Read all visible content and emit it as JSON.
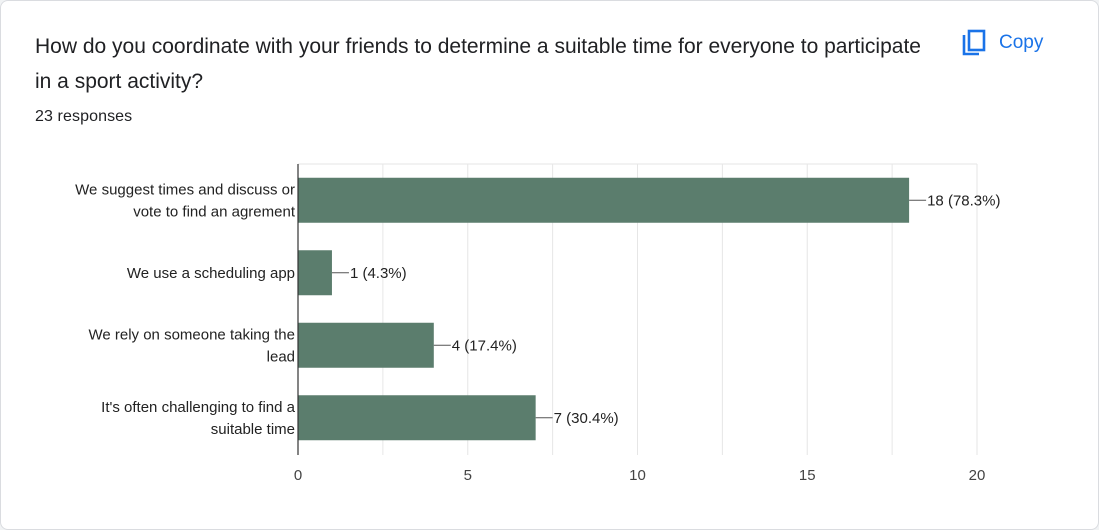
{
  "question": "How do you coordinate with your friends to determine a suitable time for everyone to participate in a sport activity?",
  "responses_label": "23 responses",
  "copy_button": {
    "label": "Copy",
    "icon": "copy-icon"
  },
  "colors": {
    "bar": "#5b7d6d",
    "accent": "#1a73e8",
    "grid": "#e6e6e6",
    "axis": "#333333"
  },
  "chart_data": {
    "type": "bar",
    "orientation": "horizontal",
    "categories": [
      [
        "We suggest times and discuss or",
        "vote to find an agrement"
      ],
      [
        "We use a scheduling app"
      ],
      [
        "We rely on someone taking the",
        "lead"
      ],
      [
        "It's often challenging to find a",
        "suitable time"
      ]
    ],
    "values": [
      18,
      1,
      4,
      7
    ],
    "value_labels": [
      "18 (78.3%)",
      "1 (4.3%)",
      "4 (17.4%)",
      "7 (30.4%)"
    ],
    "xlim": [
      0,
      20
    ],
    "xticks": [
      0,
      5,
      10,
      15,
      20
    ],
    "grid": true,
    "xlabel": "",
    "ylabel": ""
  }
}
